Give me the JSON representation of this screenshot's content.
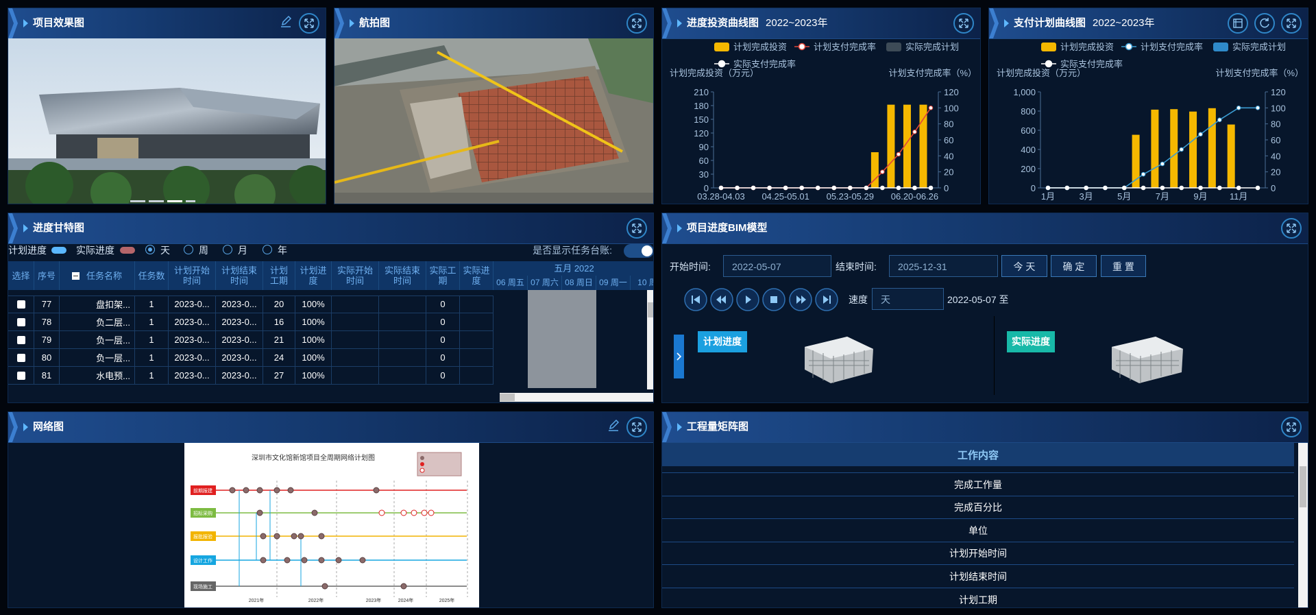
{
  "panels": {
    "effect": {
      "title": "项目效果图"
    },
    "aerial": {
      "title": "航拍图"
    },
    "gantt": {
      "title": "进度甘特图"
    },
    "bim": {
      "title": "项目进度BIM模型"
    },
    "network": {
      "title": "网络图"
    },
    "matrix": {
      "title": "工程量矩阵图"
    }
  },
  "chart_data": [
    {
      "type": "bar",
      "title": "进度投资曲线图",
      "subtitle": "2022~2023年",
      "ylabel": "计划完成投资（万元）",
      "y2label": "计划支付完成率（%）",
      "categories": [
        "03.28-04.03",
        null,
        null,
        null,
        "04.25-05.01",
        null,
        null,
        null,
        "05.23-05.29",
        null,
        null,
        null,
        "06.20-06.26",
        null
      ],
      "series": [
        {
          "name": "计划完成投资",
          "type": "bar",
          "color": "#f5b800",
          "values": [
            0,
            0,
            0,
            0,
            0,
            0,
            0,
            0,
            0,
            0,
            78,
            182,
            182,
            182
          ]
        },
        {
          "name": "计划支付完成率",
          "type": "line",
          "axis": "y2",
          "color": "#e0463a",
          "values": [
            0,
            0,
            0,
            0,
            0,
            0,
            0,
            0,
            0,
            0,
            20,
            42,
            70,
            100
          ]
        },
        {
          "name": "实际完成计划",
          "type": "bar",
          "color": "#3d4b57",
          "values": [
            0,
            0,
            0,
            0,
            0,
            0,
            0,
            0,
            0,
            0,
            0,
            0,
            0,
            0
          ]
        },
        {
          "name": "实际支付完成率",
          "type": "line",
          "axis": "y2",
          "color": "#ffffff",
          "values": [
            0,
            0,
            0,
            0,
            0,
            0,
            0,
            0,
            0,
            0,
            0,
            0,
            0,
            0
          ]
        }
      ],
      "ylim": [
        0,
        210
      ],
      "yticks": [
        0,
        30,
        60,
        90,
        120,
        150,
        180,
        210
      ],
      "y2lim": [
        0,
        120
      ],
      "y2ticks": [
        0,
        20,
        40,
        60,
        80,
        100,
        120
      ],
      "grid": false
    },
    {
      "type": "bar",
      "title": "支付计划曲线图",
      "subtitle": "2022~2023年",
      "ylabel": "计划完成投资（万元）",
      "y2label": "计划支付完成率（%）",
      "categories": [
        "1月",
        null,
        "3月",
        null,
        "5月",
        null,
        "7月",
        null,
        "9月",
        null,
        "11月",
        null
      ],
      "series": [
        {
          "name": "计划完成投资",
          "type": "bar",
          "color": "#f5b800",
          "values": [
            0,
            0,
            0,
            0,
            0,
            553,
            815,
            820,
            795,
            830,
            660,
            0
          ]
        },
        {
          "name": "计划支付完成率",
          "type": "line",
          "axis": "y2",
          "color": "#3a9bd1",
          "values": [
            0,
            0,
            0,
            0,
            0,
            17,
            30,
            48,
            67,
            85,
            100,
            100
          ]
        },
        {
          "name": "实际完成计划",
          "type": "bar",
          "color": "#2f8ac9",
          "values": [
            0,
            0,
            0,
            0,
            0,
            0,
            0,
            0,
            0,
            0,
            0,
            0
          ]
        },
        {
          "name": "实际支付完成率",
          "type": "line",
          "axis": "y2",
          "color": "#ffffff",
          "values": [
            0,
            0,
            0,
            0,
            0,
            0,
            0,
            0,
            0,
            0,
            0,
            0
          ]
        }
      ],
      "ylim": [
        0,
        1000
      ],
      "yticks": [
        0,
        200,
        400,
        600,
        800,
        {
          "value": 1000,
          "label": "1,000"
        }
      ],
      "y2lim": [
        0,
        120
      ],
      "y2ticks": [
        0,
        20,
        40,
        60,
        80,
        100,
        120
      ],
      "grid": false
    }
  ],
  "gantt": {
    "legend": [
      "计划进度",
      "实际进度"
    ],
    "views": [
      "天",
      "周",
      "月",
      "年"
    ],
    "toggle_label": "是否显示任务台账:",
    "columns": [
      "选择",
      "序号",
      "任务名称",
      "任务数",
      "计划开始时间",
      "计划结束时间",
      "计划工期",
      "计划进度",
      "实际开始时间",
      "实际结束时间",
      "实际工期",
      "实际进度"
    ],
    "rows": [
      {
        "id": 77,
        "name": "盘扣架...",
        "tasks": 1,
        "plan_start": "2023-0...",
        "plan_end": "2023-0...",
        "plan_days": 20,
        "plan_progress": "100%",
        "actual_days": 0
      },
      {
        "id": 78,
        "name": "负二层...",
        "tasks": 1,
        "plan_start": "2023-0...",
        "plan_end": "2023-0...",
        "plan_days": 16,
        "plan_progress": "100%",
        "actual_days": 0
      },
      {
        "id": 79,
        "name": "负一层...",
        "tasks": 1,
        "plan_start": "2023-0...",
        "plan_end": "2023-0...",
        "plan_days": 21,
        "plan_progress": "100%",
        "actual_days": 0
      },
      {
        "id": 80,
        "name": "负一层...",
        "tasks": 1,
        "plan_start": "2023-0...",
        "plan_end": "2023-0...",
        "plan_days": 24,
        "plan_progress": "100%",
        "actual_days": 0
      },
      {
        "id": 81,
        "name": "水电预...",
        "tasks": 1,
        "plan_start": "2023-0...",
        "plan_end": "2023-0...",
        "plan_days": 27,
        "plan_progress": "100%",
        "actual_days": 0
      }
    ],
    "month": "五月 2022",
    "days": [
      "06 周五",
      "07 周六",
      "08 周日",
      "09 周一",
      "10 周"
    ]
  },
  "bim": {
    "start_label": "开始时间:",
    "start_date": "2022-05-07",
    "end_label": "结束时间:",
    "end_date": "2025-12-31",
    "buttons": [
      "今 天",
      "确 定",
      "重 置"
    ],
    "speed_label": "速度",
    "speed_value": "天",
    "range_text": "2022-05-07 至",
    "plan_label": "计划进度",
    "actual_label": "实际进度"
  },
  "network": {
    "title": "深圳市文化馆新馆项目全周期网络计划图",
    "lanes": [
      "前期报建",
      "招标采购",
      "报批报验",
      "设计工作",
      "现场施工"
    ],
    "years": [
      "2021年",
      "2022年",
      "2023年",
      "2024年",
      "2025年"
    ]
  },
  "matrix": {
    "header": "工作内容",
    "rows": [
      "完成工作量",
      "完成百分比",
      "单位",
      "计划开始时间",
      "计划结束时间",
      "计划工期"
    ]
  }
}
